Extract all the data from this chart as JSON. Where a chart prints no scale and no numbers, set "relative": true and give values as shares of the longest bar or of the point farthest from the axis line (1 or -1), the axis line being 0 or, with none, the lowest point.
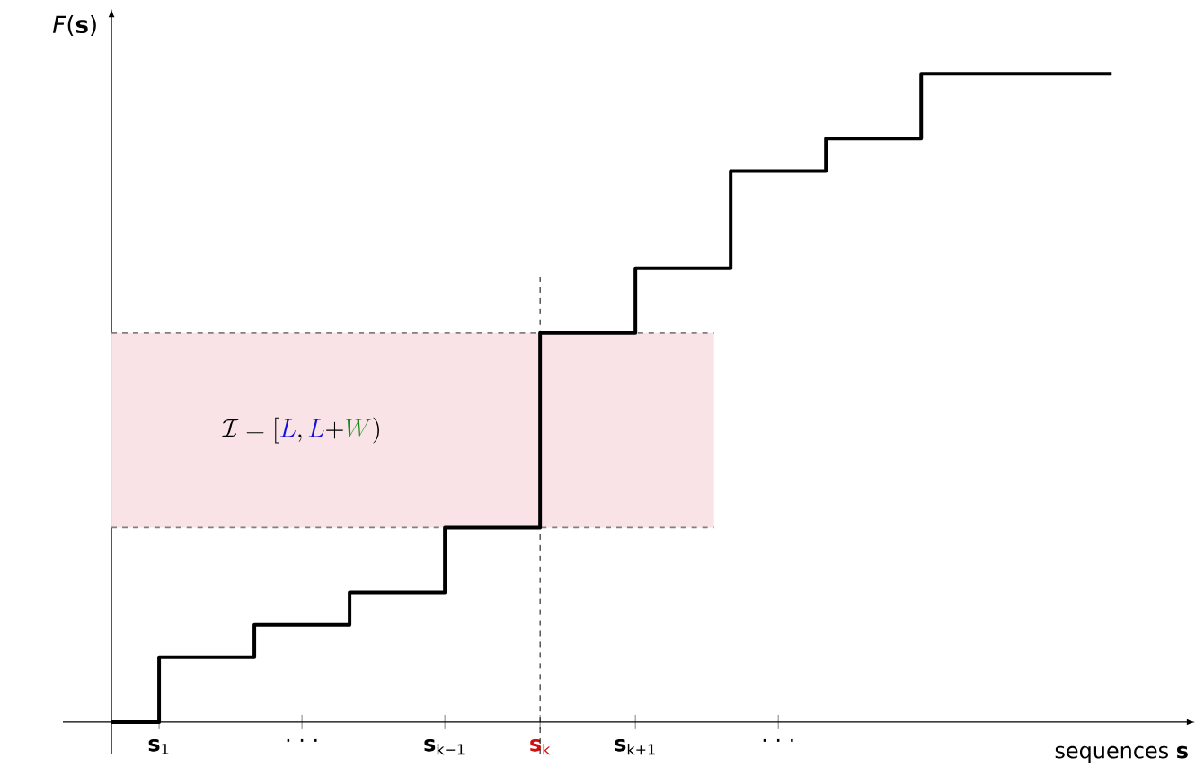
{
  "chart_data": {
    "type": "step",
    "relative": true,
    "xlabel": "sequences **s**",
    "ylabel": "*F*(**s**)",
    "categories": [
      null,
      "**s**$_{1}$",
      null,
      null,
      "· · ·",
      null,
      null,
      "**s**$_{k−1}$",
      null,
      "**s**$_{k}$",
      null,
      "**s**$_{k+1}$",
      null,
      null,
      "· · ·",
      null,
      null,
      null,
      null,
      null,
      null,
      null
    ],
    "values": [
      0,
      0.1,
      0.1,
      0.15,
      0.15,
      0.2,
      0.2,
      0.3,
      0.3,
      0.6,
      0.6,
      0.7,
      0.7,
      0.85,
      0.85,
      0.9,
      0.9,
      1,
      1,
      1,
      1,
      1
    ],
    "color": "#000000",
    "bands": [
      {
        "axis": "y",
        "from": 0.3,
        "to": 0.6,
        "color": "#f9e3e6"
      }
    ],
    "ref_lines": [
      {
        "axis": "y",
        "value": 0.3,
        "line_style": "dashed",
        "color": "#808080"
      },
      {
        "axis": "y",
        "value": 0.6,
        "line_style": "dashed",
        "color": "#808080"
      }
    ],
    "annotations": [
      "\\mathcal{I}=[{\\color[HTML]{1010E0}L},{\\color[HTML]{1010E0}L}{+}{\\color[HTML]{1A8A1A}W})"
    ]
  }
}
